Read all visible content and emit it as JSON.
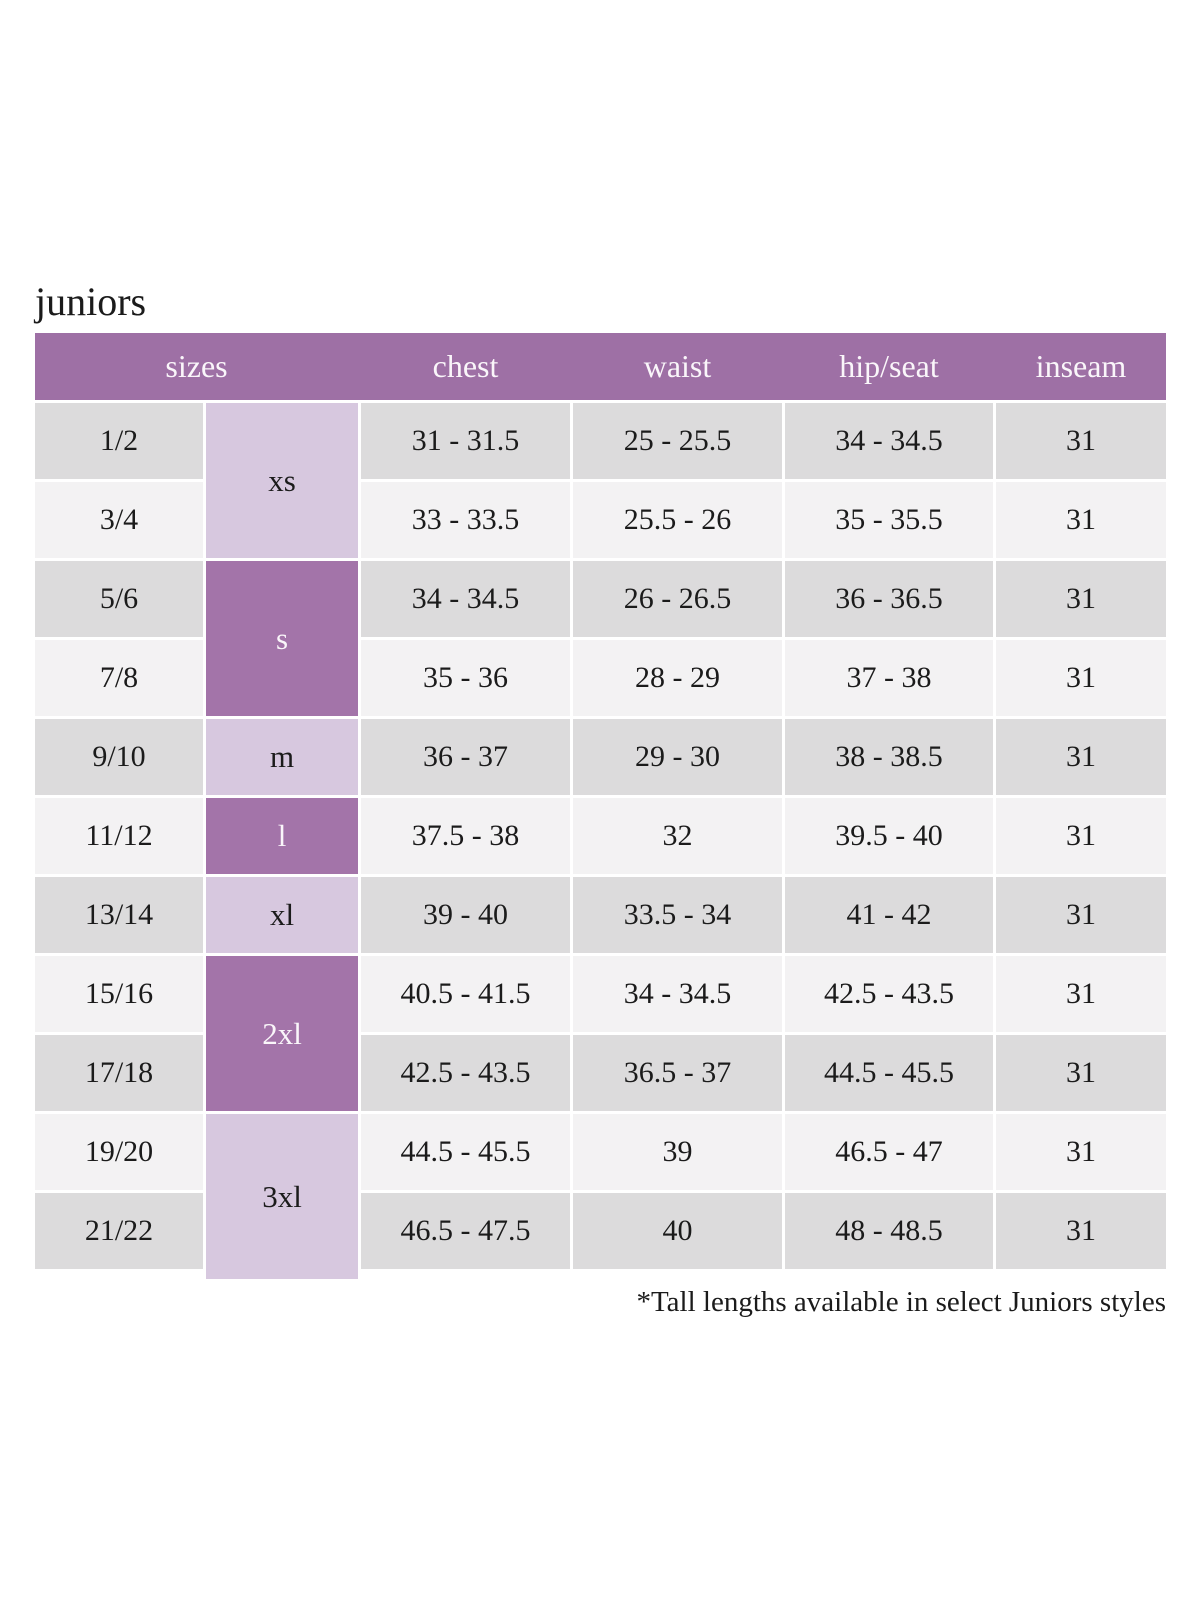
{
  "page": {
    "title": "juniors",
    "footnote": "*Tall lengths available in select Juniors styles"
  },
  "table": {
    "headers": [
      "sizes",
      "chest",
      "waist",
      "hip/seat",
      "inseam"
    ],
    "size_groups": [
      {
        "label": "xs",
        "rows": 2,
        "shade": "light"
      },
      {
        "label": "s",
        "rows": 2,
        "shade": "dark"
      },
      {
        "label": "m",
        "rows": 1,
        "shade": "light"
      },
      {
        "label": "l",
        "rows": 1,
        "shade": "dark"
      },
      {
        "label": "xl",
        "rows": 1,
        "shade": "light"
      },
      {
        "label": "2xl",
        "rows": 2,
        "shade": "dark"
      },
      {
        "label": "3xl",
        "rows": 2,
        "shade": "light"
      }
    ],
    "rows": [
      {
        "size": "1/2",
        "chest": "31 - 31.5",
        "waist": "25 - 25.5",
        "hip_seat": "34 - 34.5",
        "inseam": "31"
      },
      {
        "size": "3/4",
        "chest": "33 - 33.5",
        "waist": "25.5 - 26",
        "hip_seat": "35 - 35.5",
        "inseam": "31"
      },
      {
        "size": "5/6",
        "chest": "34 - 34.5",
        "waist": "26 - 26.5",
        "hip_seat": "36 - 36.5",
        "inseam": "31"
      },
      {
        "size": "7/8",
        "chest": "35 - 36",
        "waist": "28 - 29",
        "hip_seat": "37 - 38",
        "inseam": "31"
      },
      {
        "size": "9/10",
        "chest": "36 - 37",
        "waist": "29 - 30",
        "hip_seat": "38 - 38.5",
        "inseam": "31"
      },
      {
        "size": "11/12",
        "chest": "37.5 - 38",
        "waist": "32",
        "hip_seat": "39.5 - 40",
        "inseam": "31"
      },
      {
        "size": "13/14",
        "chest": "39 - 40",
        "waist": "33.5 - 34",
        "hip_seat": "41 - 42",
        "inseam": "31"
      },
      {
        "size": "15/16",
        "chest": "40.5 - 41.5",
        "waist": "34 - 34.5",
        "hip_seat": "42.5 - 43.5",
        "inseam": "31"
      },
      {
        "size": "17/18",
        "chest": "42.5 - 43.5",
        "waist": "36.5 - 37",
        "hip_seat": "44.5 - 45.5",
        "inseam": "31"
      },
      {
        "size": "19/20",
        "chest": "44.5 - 45.5",
        "waist": "39",
        "hip_seat": "46.5 - 47",
        "inseam": "31"
      },
      {
        "size": "21/22",
        "chest": "46.5 - 47.5",
        "waist": "40",
        "hip_seat": "48 - 48.5",
        "inseam": "31"
      }
    ],
    "colors": {
      "header_bg": "#9e70a5",
      "size_dark_bg": "#a374a9",
      "size_light_bg": "#d7c8df",
      "row_dark_bg": "#dcdbdc",
      "row_light_bg": "#f3f2f3",
      "header_text": "#faf6fa",
      "cell_text": "#1b1b1b"
    }
  }
}
